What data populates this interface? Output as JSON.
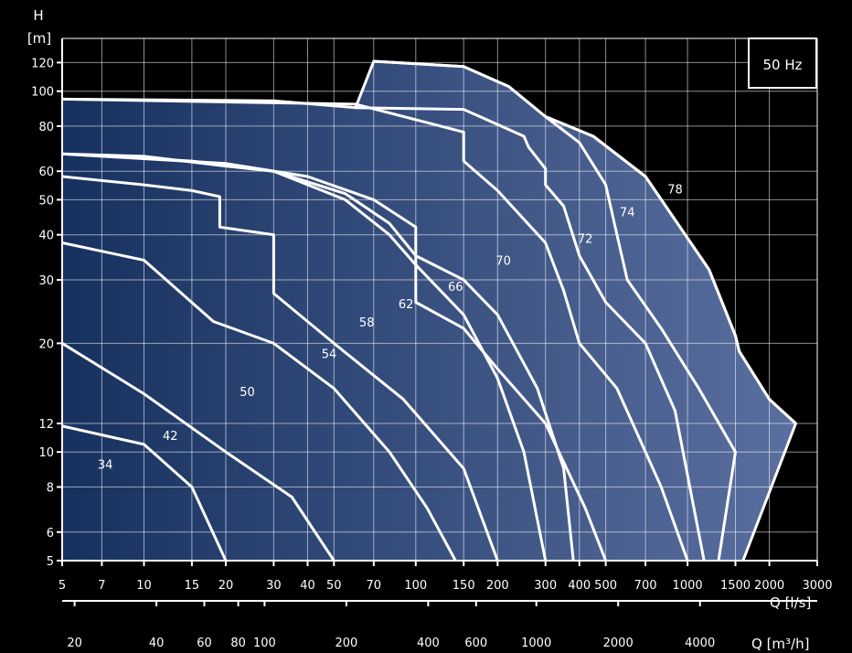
{
  "chart_data": {
    "type": "line",
    "title": "",
    "xlabel": "Q [l/s]",
    "x2label": "Q [m³/h]",
    "ylabel_top": "H",
    "ylabel_unit": "[m]",
    "frequency_label": "50 Hz",
    "xscale": "log",
    "yscale": "log",
    "xlim": [
      5,
      3000
    ],
    "ylim": [
      5,
      140
    ],
    "grid": true,
    "x_ticks": [
      5,
      7,
      10,
      15,
      20,
      30,
      40,
      50,
      70,
      100,
      150,
      200,
      300,
      400,
      500,
      700,
      1000,
      1500,
      2000,
      3000
    ],
    "x_tick_labels": [
      "5",
      "7",
      "10",
      "15",
      "20",
      "30",
      "40",
      "50",
      "70",
      "100",
      "150",
      "200",
      "300",
      "400",
      "500",
      "700",
      "1000",
      "1500",
      "2000",
      "3000"
    ],
    "x2_ticks_m3h": [
      20,
      40,
      60,
      80,
      100,
      200,
      400,
      600,
      1000,
      2000,
      4000
    ],
    "x2_tick_labels": [
      "20",
      "40",
      "60",
      "80",
      "100",
      "200",
      "400",
      "600",
      "1000",
      "2000",
      "4000"
    ],
    "y_ticks": [
      5,
      6,
      8,
      10,
      12,
      20,
      30,
      40,
      50,
      60,
      80,
      100,
      120
    ],
    "y_tick_labels": [
      "5",
      "6",
      "8",
      "10",
      "12",
      "20",
      "30",
      "40",
      "50",
      "60",
      "80",
      "100",
      "120"
    ],
    "fill_colors": [
      "#17315f",
      "#5a6f9f"
    ],
    "line_color": "#ffffff",
    "envelope": [
      [
        5,
        95
      ],
      [
        30,
        94
      ],
      [
        60,
        90
      ],
      [
        70,
        121
      ],
      [
        150,
        117
      ],
      [
        220,
        103
      ],
      [
        300,
        85
      ],
      [
        450,
        75
      ],
      [
        700,
        58
      ],
      [
        1200,
        32
      ],
      [
        1500,
        21
      ],
      [
        1550,
        19
      ],
      [
        1700,
        17
      ],
      [
        2000,
        14
      ],
      [
        2500,
        12
      ],
      [
        1600,
        5
      ],
      [
        5,
        5
      ]
    ],
    "series": [
      {
        "label": "34",
        "points": [
          [
            5,
            11.8
          ],
          [
            10,
            10.5
          ],
          [
            15,
            8
          ],
          [
            20,
            5
          ]
        ]
      },
      {
        "label": "42",
        "points": [
          [
            5,
            20
          ],
          [
            10,
            14.5
          ],
          [
            20,
            10
          ],
          [
            35,
            7.5
          ],
          [
            50,
            5
          ]
        ]
      },
      {
        "label": "50",
        "points": [
          [
            5,
            38
          ],
          [
            10,
            34
          ],
          [
            18,
            23
          ],
          [
            30,
            20
          ],
          [
            50,
            15
          ],
          [
            80,
            10
          ],
          [
            110,
            7
          ],
          [
            140,
            5
          ]
        ]
      },
      {
        "label": "54",
        "points": [
          [
            5,
            58
          ],
          [
            10,
            55
          ],
          [
            15,
            53
          ],
          [
            19,
            51
          ],
          [
            19,
            42
          ],
          [
            30,
            40
          ],
          [
            30,
            27.5
          ],
          [
            50,
            20
          ],
          [
            90,
            14
          ],
          [
            150,
            9
          ],
          [
            200,
            5
          ]
        ]
      },
      {
        "label": "58",
        "points": [
          [
            5,
            67
          ],
          [
            10,
            66
          ],
          [
            20,
            62
          ],
          [
            30,
            60
          ],
          [
            55,
            50
          ],
          [
            80,
            40
          ],
          [
            100,
            33
          ],
          [
            150,
            24
          ],
          [
            200,
            16
          ],
          [
            250,
            10
          ],
          [
            300,
            5
          ]
        ]
      },
      {
        "label": "62",
        "points": [
          [
            5,
            67
          ],
          [
            15,
            64
          ],
          [
            30,
            60
          ],
          [
            55,
            52
          ],
          [
            80,
            43
          ],
          [
            100,
            35
          ],
          [
            150,
            30
          ],
          [
            200,
            24
          ],
          [
            280,
            15
          ],
          [
            350,
            9
          ],
          [
            380,
            5
          ]
        ]
      },
      {
        "label": "66",
        "points": [
          [
            5,
            67
          ],
          [
            20,
            63
          ],
          [
            40,
            58
          ],
          [
            70,
            50
          ],
          [
            100,
            42
          ],
          [
            100,
            26
          ],
          [
            150,
            22
          ],
          [
            200,
            17
          ],
          [
            300,
            12
          ],
          [
            420,
            7
          ],
          [
            500,
            5
          ]
        ]
      },
      {
        "label": "70",
        "points": [
          [
            5,
            95
          ],
          [
            60,
            92
          ],
          [
            150,
            77
          ],
          [
            150,
            64
          ],
          [
            200,
            53
          ],
          [
            300,
            38
          ],
          [
            350,
            28
          ],
          [
            400,
            20
          ],
          [
            550,
            15
          ],
          [
            800,
            8
          ],
          [
            1000,
            5
          ]
        ]
      },
      {
        "label": "72",
        "points": [
          [
            60,
            90
          ],
          [
            150,
            89
          ],
          [
            250,
            75
          ],
          [
            260,
            70
          ],
          [
            300,
            61
          ],
          [
            300,
            55
          ],
          [
            350,
            48
          ],
          [
            400,
            35
          ],
          [
            500,
            26
          ],
          [
            700,
            20
          ],
          [
            900,
            13
          ],
          [
            1150,
            5
          ]
        ]
      },
      {
        "label": "74",
        "points": [
          [
            70,
            121
          ],
          [
            150,
            117
          ],
          [
            220,
            103
          ],
          [
            300,
            85
          ],
          [
            400,
            72
          ],
          [
            500,
            55
          ],
          [
            550,
            40
          ],
          [
            600,
            30
          ],
          [
            800,
            22
          ],
          [
            1100,
            15
          ],
          [
            1500,
            10
          ],
          [
            1300,
            5
          ]
        ]
      },
      {
        "label": "78",
        "points": [
          [
            300,
            85
          ],
          [
            450,
            75
          ],
          [
            700,
            58
          ],
          [
            1200,
            32
          ],
          [
            1500,
            21
          ],
          [
            1550,
            19
          ],
          [
            1700,
            17
          ],
          [
            2000,
            14
          ],
          [
            2500,
            12
          ],
          [
            1600,
            5
          ]
        ]
      }
    ],
    "label_positions": [
      {
        "text": "34",
        "x": 7.2,
        "y": 9
      },
      {
        "text": "42",
        "x": 12.5,
        "y": 10.8
      },
      {
        "text": "50",
        "x": 24,
        "y": 14.3
      },
      {
        "text": "54",
        "x": 48,
        "y": 18.2
      },
      {
        "text": "58",
        "x": 66,
        "y": 22.3
      },
      {
        "text": "62",
        "x": 92,
        "y": 25
      },
      {
        "text": "66",
        "x": 140,
        "y": 28
      },
      {
        "text": "70",
        "x": 210,
        "y": 33
      },
      {
        "text": "72",
        "x": 420,
        "y": 38
      },
      {
        "text": "74",
        "x": 600,
        "y": 45
      },
      {
        "text": "78",
        "x": 900,
        "y": 52
      }
    ]
  }
}
